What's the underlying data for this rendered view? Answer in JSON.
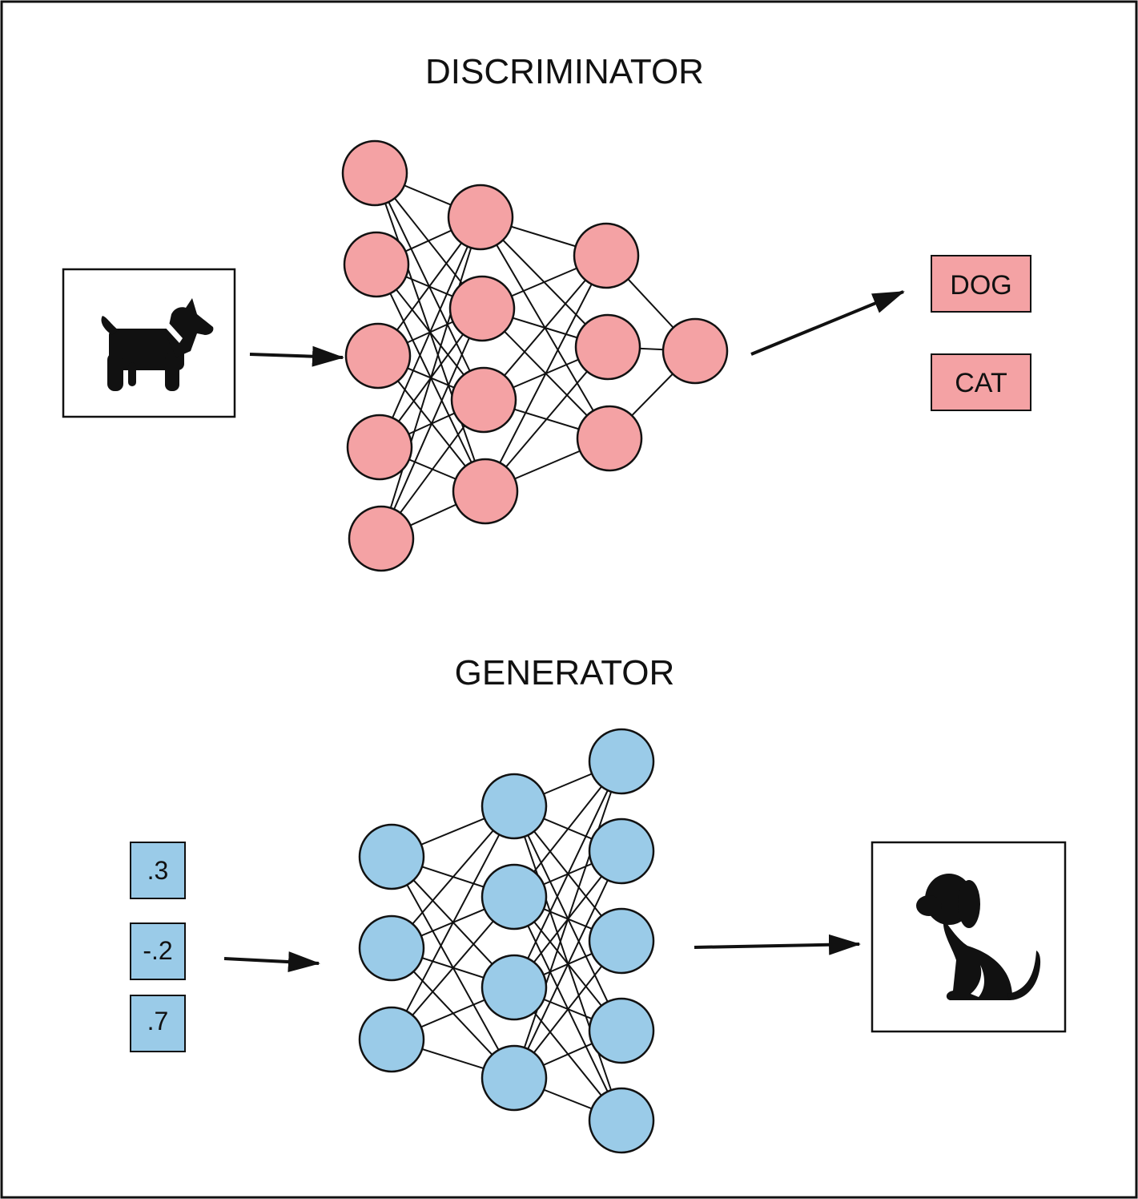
{
  "discriminator": {
    "title": "DISCRIMINATOR",
    "node_color": "#f4a2a4",
    "layers": [
      5,
      4,
      3,
      1
    ],
    "outputs": [
      {
        "label": "DOG"
      },
      {
        "label": "CAT"
      }
    ],
    "input_icon": "standing-dog-icon"
  },
  "generator": {
    "title": "GENERATOR",
    "node_color": "#9acbe8",
    "layers": [
      3,
      4,
      5
    ],
    "inputs": [
      {
        "label": ".3"
      },
      {
        "label": "-.2"
      },
      {
        "label": ".7"
      }
    ],
    "output_icon": "sitting-dog-icon"
  },
  "colors": {
    "stroke": "#111111",
    "background": "#ffffff"
  }
}
